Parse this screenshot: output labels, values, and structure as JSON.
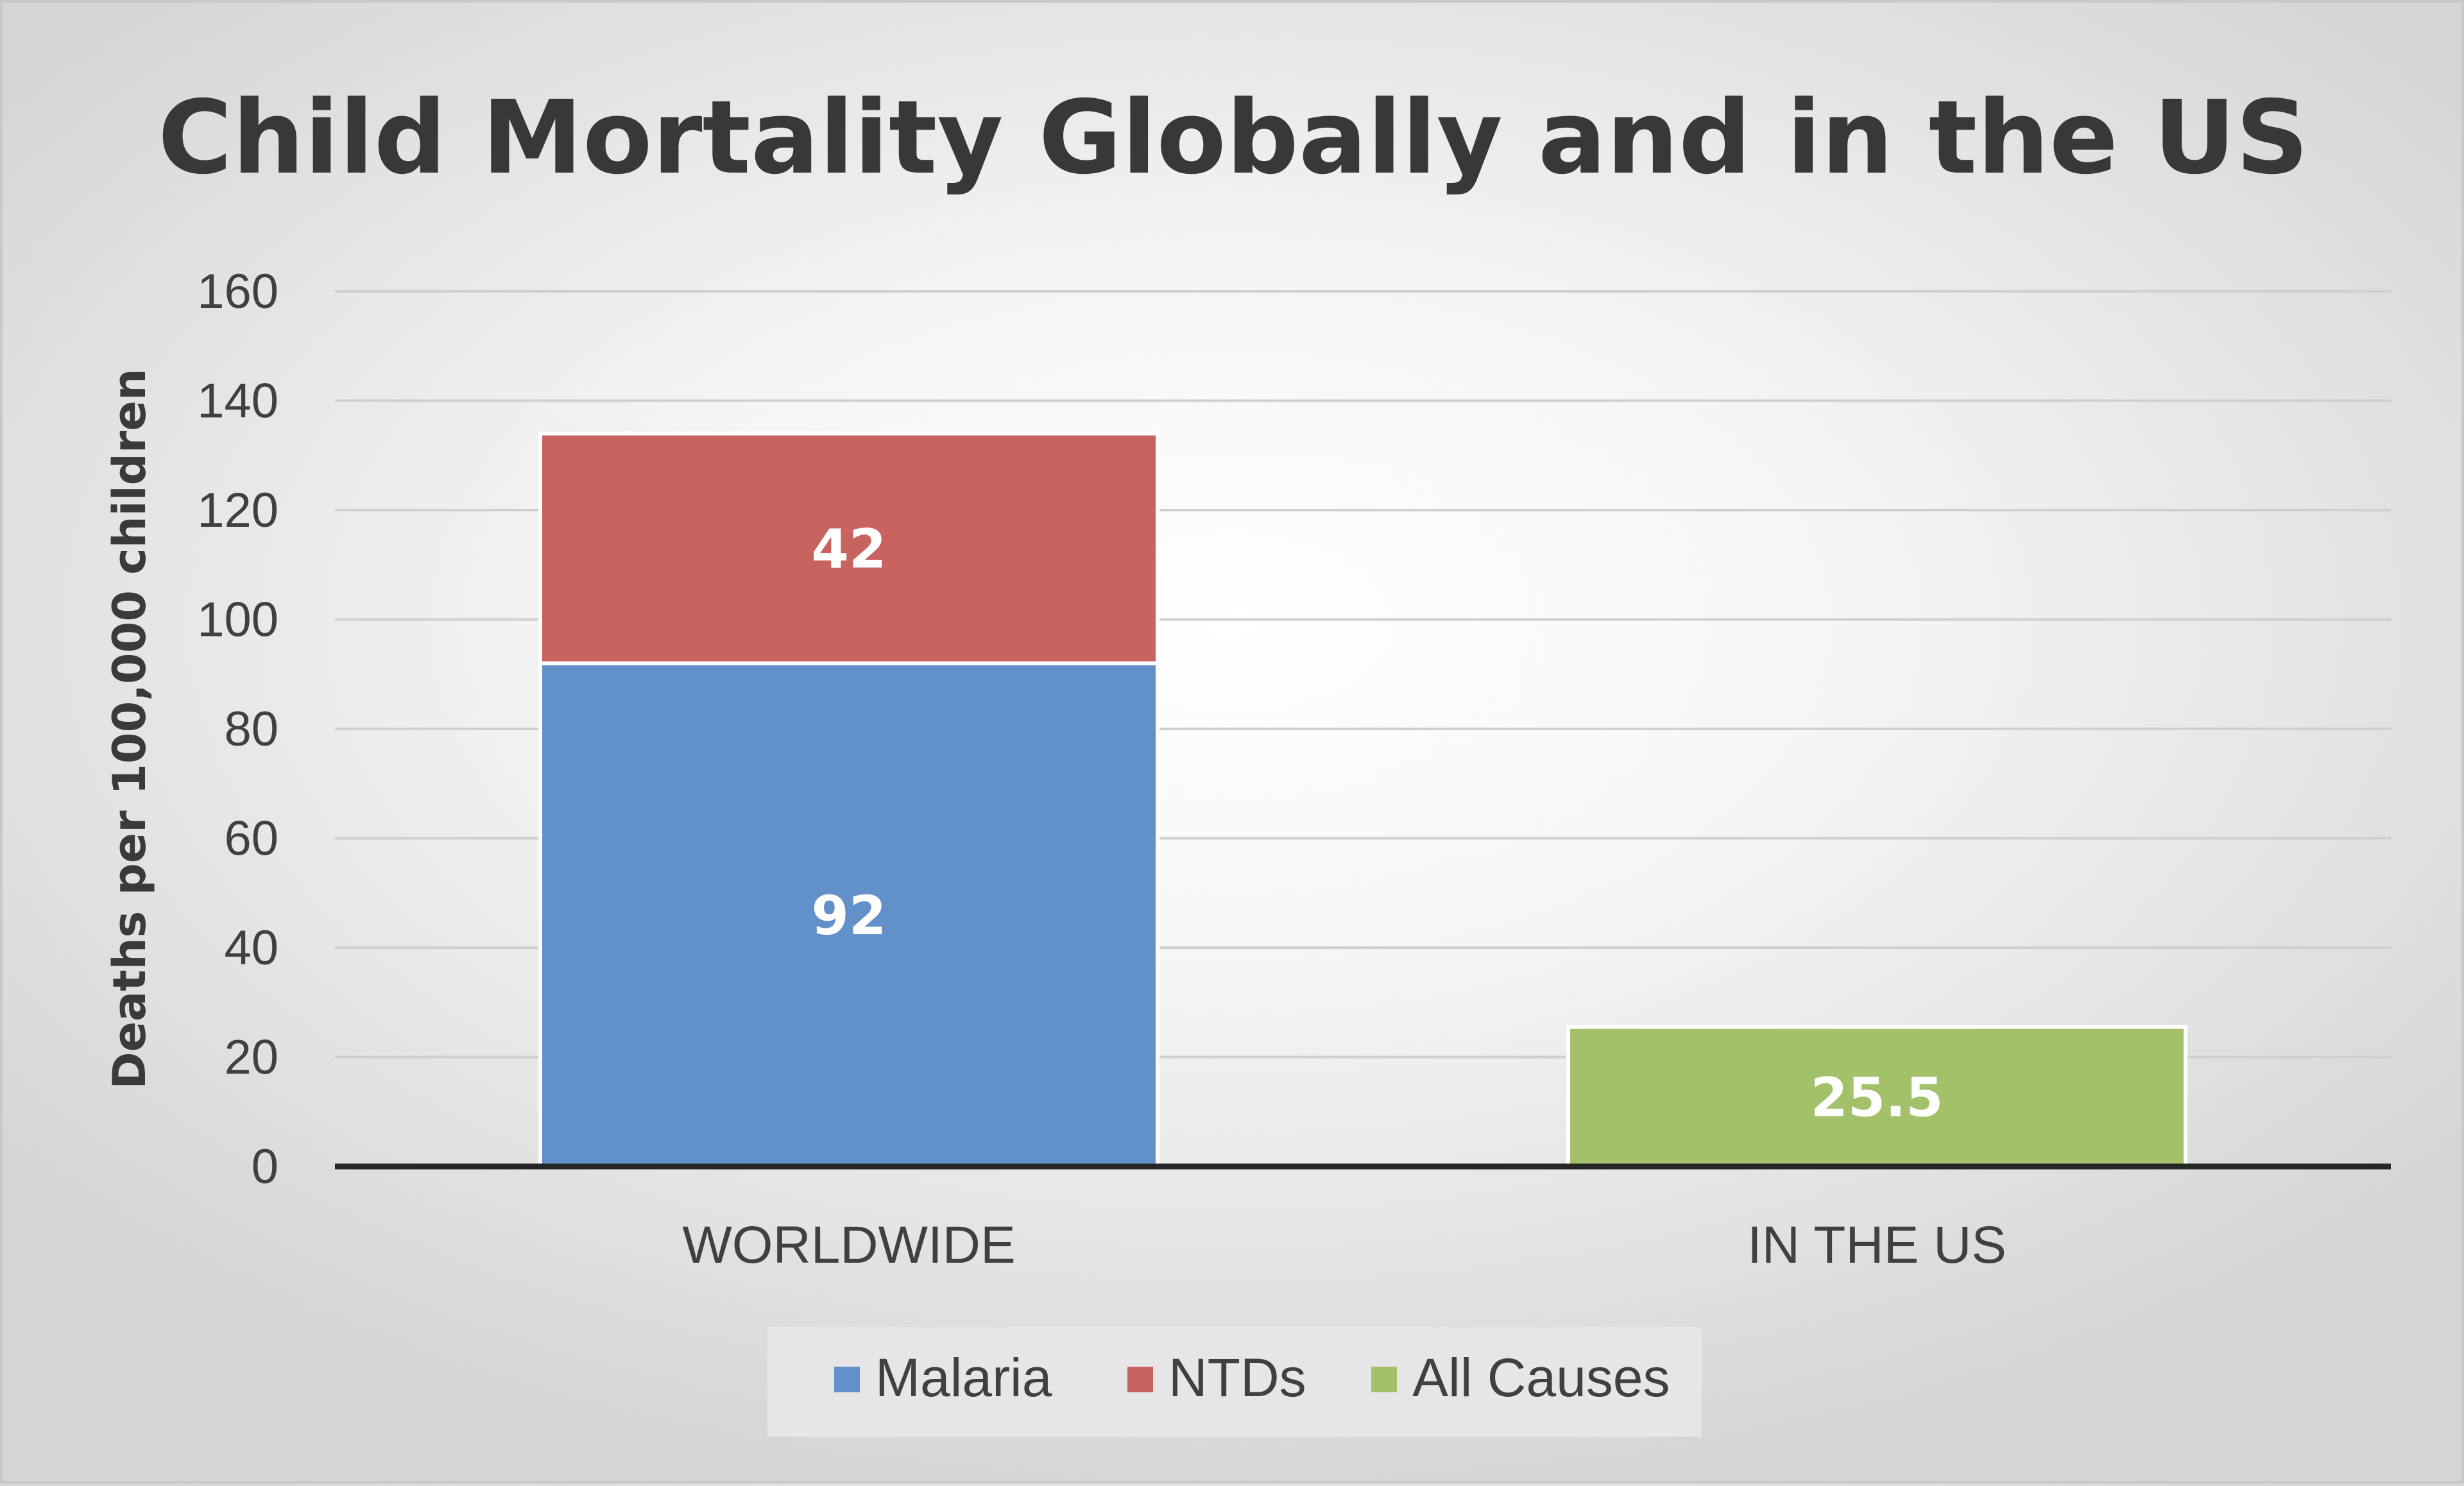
{
  "chart_data": {
    "type": "bar",
    "stacked": true,
    "title": "Child Mortality Globally and in the US",
    "xlabel": "",
    "ylabel": "Deaths per 100,000 children",
    "ylim": [
      0,
      160
    ],
    "yticks": [
      0,
      20,
      40,
      60,
      80,
      100,
      120,
      140,
      160
    ],
    "grid": true,
    "legend_position": "bottom",
    "categories": [
      "WORLDWIDE",
      "IN THE US"
    ],
    "series": [
      {
        "name": "Malaria",
        "color": "#6290c8",
        "values": [
          92,
          null
        ],
        "labels": [
          "92",
          null
        ]
      },
      {
        "name": "NTDs",
        "color": "#c96360",
        "values": [
          42,
          null
        ],
        "labels": [
          "42",
          null
        ]
      },
      {
        "name": "All Causes",
        "color": "#a2c168",
        "values": [
          null,
          25.5
        ],
        "labels": [
          null,
          "25.5"
        ]
      }
    ]
  }
}
